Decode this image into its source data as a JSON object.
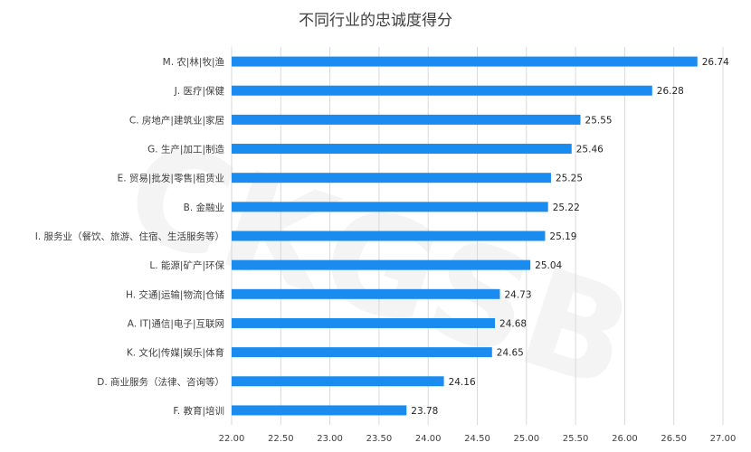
{
  "chart_data": {
    "type": "bar",
    "orientation": "horizontal",
    "title": "不同行业的忠诚度得分",
    "categories": [
      "M. 农|林|牧|渔",
      "J. 医疗|保健",
      "C. 房地产|建筑业|家居",
      "G. 生产|加工|制造",
      "E. 贸易|批发|零售|租赁业",
      "B. 金融业",
      "I. 服务业（餐饮、旅游、住宿、生活服务等）",
      "L. 能源|矿产|环保",
      "H. 交通|运输|物流|仓储",
      "A. IT|通信|电子|互联网",
      "K. 文化|传媒|娱乐|体育",
      "D. 商业服务（法律、咨询等）",
      "F. 教育|培训"
    ],
    "values": [
      26.74,
      26.28,
      25.55,
      25.46,
      25.25,
      25.22,
      25.19,
      25.04,
      24.73,
      24.68,
      24.65,
      24.16,
      23.78
    ],
    "value_labels": [
      "26.74",
      "26.28",
      "25.55",
      "25.46",
      "25.25",
      "25.22",
      "25.19",
      "25.04",
      "24.73",
      "24.68",
      "24.65",
      "24.16",
      "23.78"
    ],
    "xlim": [
      22.0,
      27.0
    ],
    "xticks": [
      "22.00",
      "22.50",
      "23.00",
      "23.50",
      "24.00",
      "24.50",
      "25.00",
      "25.50",
      "26.00",
      "26.50",
      "27.00"
    ],
    "xlabel": "",
    "ylabel": "",
    "grid": true,
    "bar_color": "#1a8cf0",
    "watermark": "CKGSB"
  }
}
